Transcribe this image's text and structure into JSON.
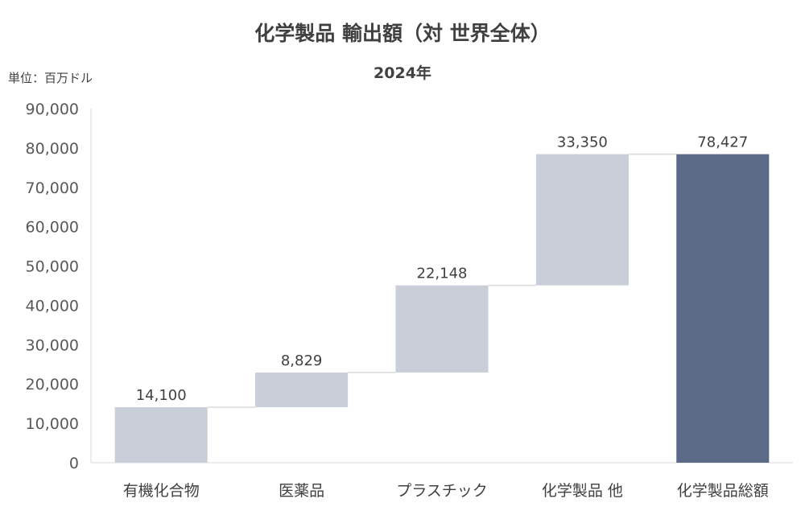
{
  "chart_data": {
    "type": "bar",
    "subtype": "waterfall",
    "title": "化学製品 輸出額（対 世界全体）",
    "subtitle": "2024年",
    "unit_label": "単位：百万ドル",
    "categories": [
      "有機化合物",
      "医薬品",
      "プラスチック",
      "化学製品 他",
      "化学製品総額"
    ],
    "values": [
      14100,
      8829,
      22148,
      33350,
      78427
    ],
    "value_labels": [
      "14,100",
      "8,829",
      "22,148",
      "33,350",
      "78,427"
    ],
    "is_total": [
      false,
      false,
      false,
      false,
      true
    ],
    "ylim": [
      0,
      90000
    ],
    "yticks": [
      0,
      10000,
      20000,
      30000,
      40000,
      50000,
      60000,
      70000,
      80000,
      90000
    ],
    "ytick_labels": [
      "0",
      "10,000",
      "20,000",
      "30,000",
      "40,000",
      "50,000",
      "60,000",
      "70,000",
      "80,000",
      "90,000"
    ],
    "grid": false,
    "colors": {
      "increment": "#c9ced9",
      "total": "#5b6a86",
      "connector": "#d9d9d9",
      "axis": "#d9d9d9"
    }
  }
}
